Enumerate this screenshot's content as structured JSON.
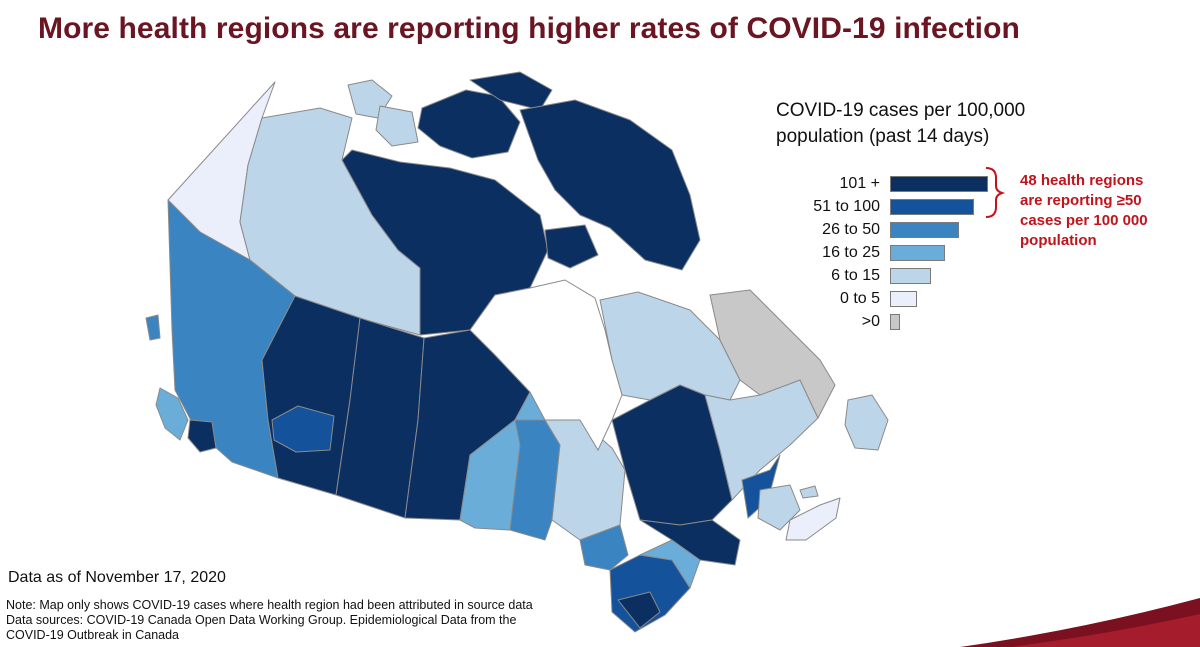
{
  "title": "More health regions are reporting higher rates of COVID-19 infection",
  "legend": {
    "title_line1": "COVID-19 cases per 100,000",
    "title_line2": "population (past 14 days)",
    "items": [
      {
        "label": "101 +",
        "color": "#0b2f61",
        "relative_length": 1.0
      },
      {
        "label": "51 to 100",
        "color": "#14529b",
        "relative_length": 0.86
      },
      {
        "label": "26 to 50",
        "color": "#3a84c2",
        "relative_length": 0.7
      },
      {
        "label": "16 to 25",
        "color": "#6badd9",
        "relative_length": 0.56
      },
      {
        "label": "6 to 15",
        "color": "#bdd5e8",
        "relative_length": 0.42
      },
      {
        "label": "0 to 5",
        "color": "#eaeffb",
        "relative_length": 0.28
      },
      {
        "label": ">0",
        "color": "#c8c8c8",
        "relative_length": 0.1
      }
    ]
  },
  "callout": {
    "line1": "48 health regions",
    "line2": "are reporting ≥50",
    "line3": "cases per 100 000",
    "line4": "population"
  },
  "date_note": "Data as of November 17, 2020",
  "notes": {
    "line1": "Note: Map only shows COVID-19 cases where health region had been attributed in source data",
    "line2": "Data sources: COVID-19 Canada Open Data Working Group. Epidemiological Data from the",
    "line3": "COVID-19 Outbreak in Canada"
  },
  "colors": {
    "title": "#6b1422",
    "callout": "#c0141d",
    "bracket": "#c0141d",
    "border": "#8a8a8a",
    "swoosh": "#7a1020"
  }
}
